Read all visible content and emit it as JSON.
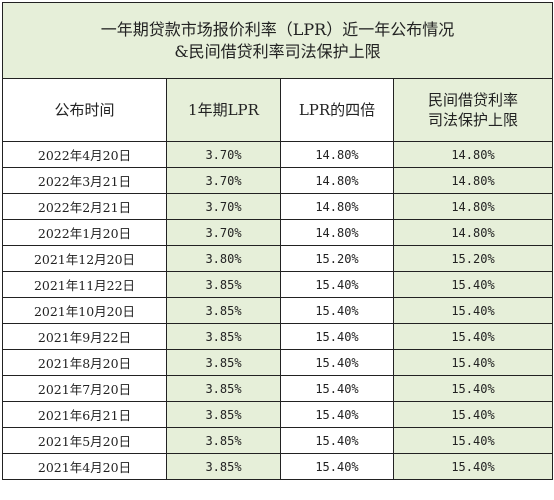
{
  "title_line1": "一年期贷款市场报价利率（LPR）近一年公布情况",
  "title_line2": "&民间借贷利率司法保护上限",
  "headers": {
    "date": "公布时间",
    "lpr": "1年期LPR",
    "lpr4": "LPR的四倍",
    "cap_line1": "民间借贷利率",
    "cap_line2": "司法保护上限"
  },
  "rows": [
    {
      "date": "2022年4月20日",
      "lpr": "3.70%",
      "lpr4": "14.80%",
      "cap": "14.80%"
    },
    {
      "date": "2022年3月21日",
      "lpr": "3.70%",
      "lpr4": "14.80%",
      "cap": "14.80%"
    },
    {
      "date": "2022年2月21日",
      "lpr": "3.70%",
      "lpr4": "14.80%",
      "cap": "14.80%"
    },
    {
      "date": "2022年1月20日",
      "lpr": "3.70%",
      "lpr4": "14.80%",
      "cap": "14.80%"
    },
    {
      "date": "2021年12月20日",
      "lpr": "3.80%",
      "lpr4": "15.20%",
      "cap": "15.20%"
    },
    {
      "date": "2021年11月22日",
      "lpr": "3.85%",
      "lpr4": "15.40%",
      "cap": "15.40%"
    },
    {
      "date": "2021年10月20日",
      "lpr": "3.85%",
      "lpr4": "15.40%",
      "cap": "15.40%"
    },
    {
      "date": "2021年9月22日",
      "lpr": "3.85%",
      "lpr4": "15.40%",
      "cap": "15.40%"
    },
    {
      "date": "2021年8月20日",
      "lpr": "3.85%",
      "lpr4": "15.40%",
      "cap": "15.40%"
    },
    {
      "date": "2021年7月20日",
      "lpr": "3.85%",
      "lpr4": "15.40%",
      "cap": "15.40%"
    },
    {
      "date": "2021年6月21日",
      "lpr": "3.85%",
      "lpr4": "15.40%",
      "cap": "15.40%"
    },
    {
      "date": "2021年5月20日",
      "lpr": "3.85%",
      "lpr4": "15.40%",
      "cap": "15.40%"
    },
    {
      "date": "2021年4月20日",
      "lpr": "3.85%",
      "lpr4": "15.40%",
      "cap": "15.40%"
    }
  ]
}
